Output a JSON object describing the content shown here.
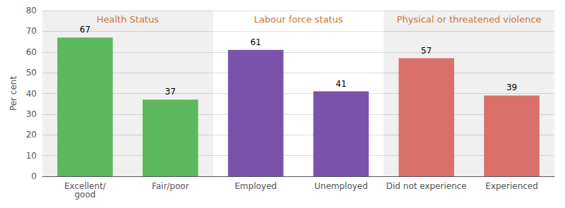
{
  "chart_data": {
    "type": "bar",
    "categories": [
      "Excellent/\ngood",
      "Fair/poor",
      "Employed",
      "Unemployed",
      "Did not experience",
      "Experienced"
    ],
    "values": [
      67,
      37,
      61,
      41,
      57,
      39
    ],
    "colors": [
      "#5cb85c",
      "#5cb85c",
      "#7b52ab",
      "#7b52ab",
      "#d9706b",
      "#d9706b"
    ],
    "y_label": "Per cent",
    "ylim": [
      0,
      80
    ],
    "yticks": [
      0,
      10,
      20,
      30,
      40,
      50,
      60,
      70,
      80
    ],
    "annotations": [
      "Health Status",
      "Labour force status",
      "Physical or threatened violence"
    ],
    "grid": true,
    "data_labels": true
  }
}
